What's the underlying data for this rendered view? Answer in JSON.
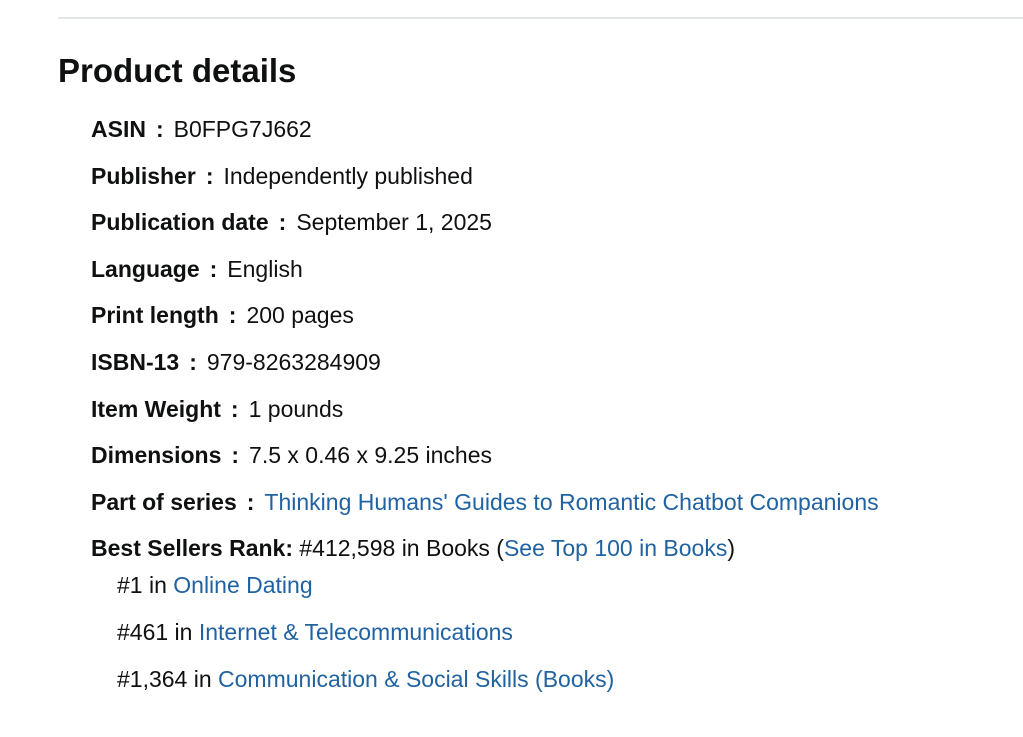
{
  "header": {
    "title": "Product details"
  },
  "separator": ":",
  "details": [
    {
      "label": "ASIN",
      "value": "B0FPG7J662"
    },
    {
      "label": "Publisher",
      "value": "Independently published"
    },
    {
      "label": "Publication date",
      "value": "September 1, 2025"
    },
    {
      "label": "Language",
      "value": "English"
    },
    {
      "label": "Print length",
      "value": "200 pages"
    },
    {
      "label": "ISBN-13",
      "value": "979-8263284909"
    },
    {
      "label": "Item Weight",
      "value": "1 pounds"
    },
    {
      "label": "Dimensions",
      "value": "7.5 x 0.46 x 9.25 inches"
    },
    {
      "label": "Part of series",
      "link": "Thinking Humans' Guides to Romantic Chatbot Companions"
    }
  ],
  "best_sellers": {
    "label": "Best Sellers Rank:",
    "text": "#412,598 in Books (",
    "link": "See Top 100 in Books",
    "close": ")",
    "sub_ranks": [
      {
        "rank": "#1 in",
        "category": "Online Dating"
      },
      {
        "rank": "#461 in",
        "category": "Internet & Telecommunications"
      },
      {
        "rank": "#1,364 in",
        "category": "Communication & Social Skills (Books)"
      }
    ]
  }
}
